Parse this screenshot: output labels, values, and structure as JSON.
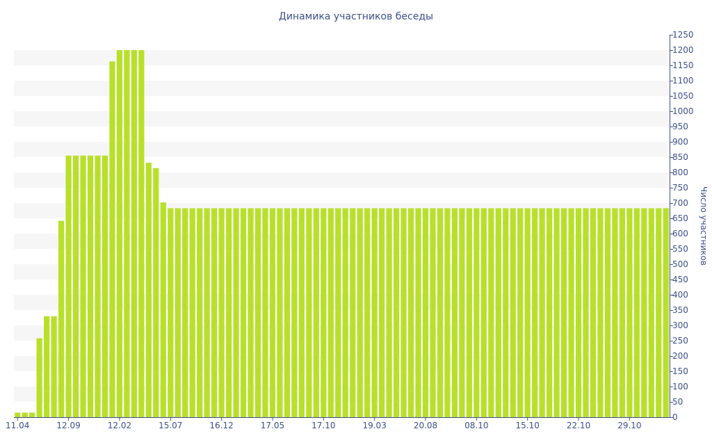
{
  "chart_data": {
    "type": "bar",
    "title": "Динамика участников беседы",
    "xlabel": "",
    "ylabel": "Число участников",
    "ylim": [
      0,
      1250
    ],
    "yticks": [
      0,
      50,
      100,
      150,
      200,
      250,
      300,
      350,
      400,
      450,
      500,
      550,
      600,
      650,
      700,
      750,
      800,
      850,
      900,
      950,
      1000,
      1050,
      1100,
      1150,
      1200,
      1250
    ],
    "y_axis_side": "right",
    "x_tick_labels": [
      {
        "label": "11.04",
        "index": 0
      },
      {
        "label": "12.09",
        "index": 7
      },
      {
        "label": "12.02",
        "index": 14
      },
      {
        "label": "15.07",
        "index": 21
      },
      {
        "label": "16.12",
        "index": 28
      },
      {
        "label": "17.05",
        "index": 35
      },
      {
        "label": "17.10",
        "index": 42
      },
      {
        "label": "19.03",
        "index": 49
      },
      {
        "label": "20.08",
        "index": 56
      },
      {
        "label": "08.10",
        "index": 63
      },
      {
        "label": "15.10",
        "index": 70
      },
      {
        "label": "22.10",
        "index": 77
      },
      {
        "label": "29.10",
        "index": 84
      }
    ],
    "values": [
      15,
      15,
      15,
      258,
      330,
      330,
      642,
      855,
      855,
      855,
      855,
      855,
      855,
      1163,
      1200,
      1200,
      1200,
      1200,
      832,
      814,
      702,
      683,
      683,
      683,
      683,
      683,
      683,
      683,
      683,
      683,
      683,
      683,
      683,
      683,
      683,
      683,
      683,
      683,
      683,
      683,
      683,
      683,
      683,
      683,
      683,
      683,
      683,
      683,
      683,
      683,
      683,
      683,
      683,
      683,
      683,
      683,
      683,
      683,
      683,
      683,
      683,
      683,
      683,
      683,
      683,
      683,
      683,
      683,
      683,
      683,
      683,
      683,
      683,
      683,
      683,
      683,
      683,
      683,
      683,
      683,
      683,
      683,
      683,
      683,
      683,
      683,
      683,
      683,
      683,
      683
    ],
    "bar_color": "#b8e02a",
    "band_color": "#f6f6f6",
    "axis_color": "#3b4f8a",
    "grid": "alternating bands",
    "legend": "none"
  }
}
